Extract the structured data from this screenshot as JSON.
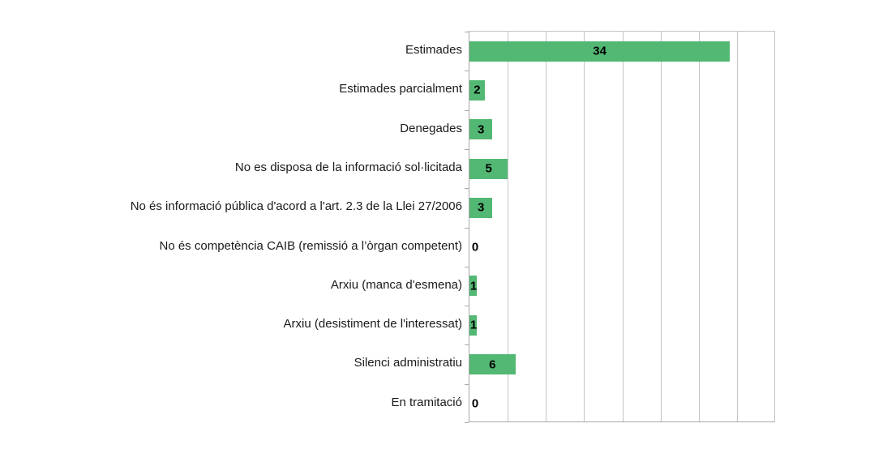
{
  "chart_data": {
    "type": "bar",
    "orientation": "horizontal",
    "title": "",
    "xlabel": "",
    "ylabel": "",
    "categories": [
      "Estimades",
      "Estimades parcialment",
      "Denegades",
      "No es disposa de la informació sol·licitada",
      "No és informació pública d'acord a l'art. 2.3 de la Llei 27/2006",
      "No és competència CAIB (remissió a l’òrgan competent)",
      "Arxiu (manca d'esmena)",
      "Arxiu (desistiment de l'interessat)",
      "Silenci administratiu",
      "En tramitació"
    ],
    "values": [
      34,
      2,
      3,
      5,
      3,
      0,
      1,
      1,
      6,
      0
    ],
    "xlim": [
      0,
      40
    ],
    "gridline_interval": 5,
    "x_tick_labels_visible": false,
    "legend_position": "none",
    "data_label_position": "inside-center",
    "colors": {
      "bar": "#52b873",
      "gridline": "#c4c4c4",
      "axis": "#a8a8a8",
      "category_label": "#1a1a1a",
      "value_label": "#000000",
      "background": "#ffffff"
    }
  }
}
